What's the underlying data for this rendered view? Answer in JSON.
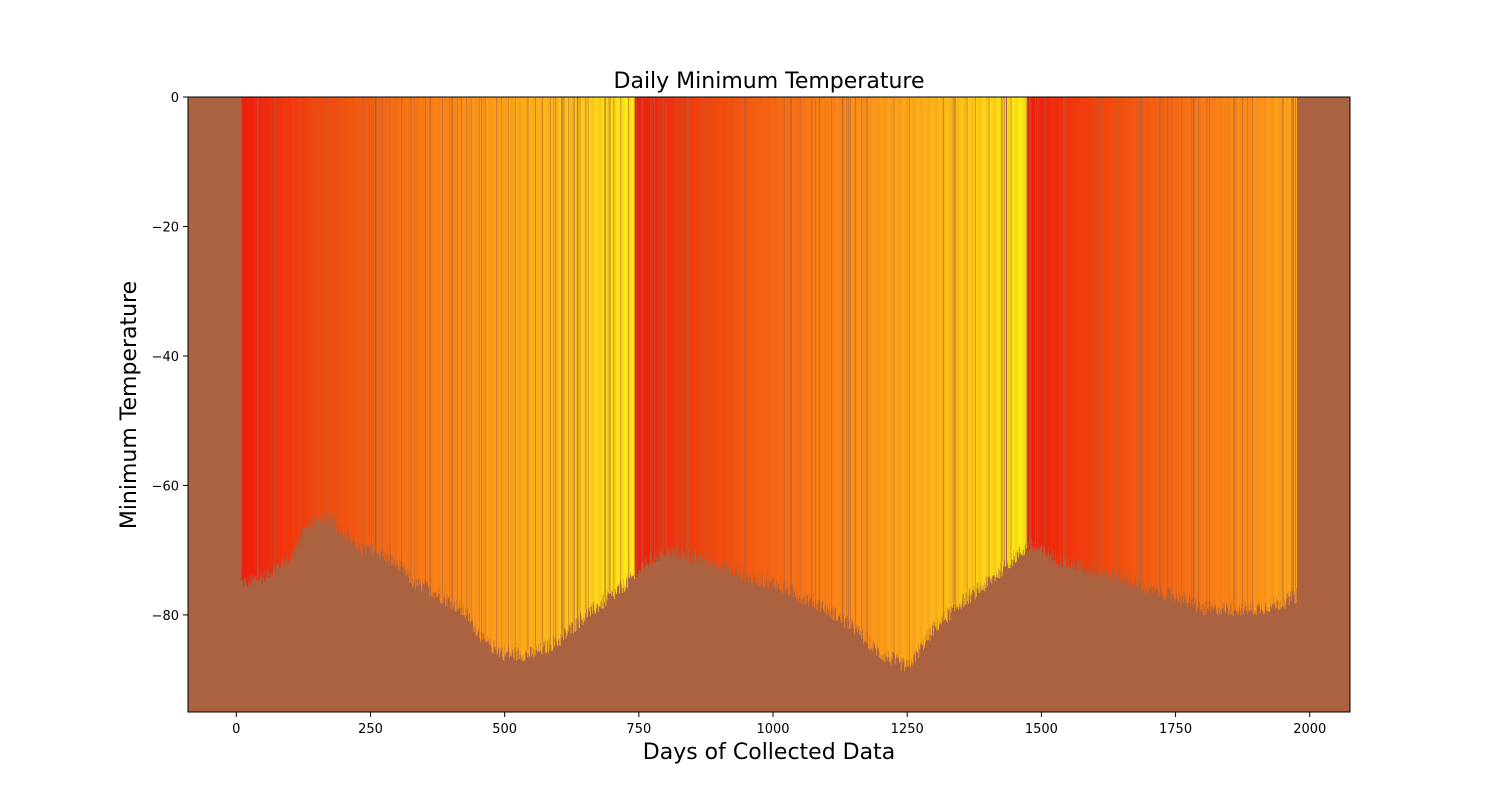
{
  "chart_data": {
    "type": "bar",
    "title": "Daily Minimum Temperature",
    "xlabel": "Days of Collected Data",
    "ylabel": "Minimum Temperature",
    "xlim": [
      -90,
      2075
    ],
    "ylim": [
      -95,
      0
    ],
    "x_ticks": [
      0,
      250,
      500,
      750,
      1000,
      1250,
      1500,
      1750,
      2000
    ],
    "x_tick_labels": [
      "0",
      "250",
      "500",
      "750",
      "1000",
      "1250",
      "1500",
      "1750",
      "2000"
    ],
    "y_ticks": [
      0,
      -20,
      -40,
      -60,
      -80
    ],
    "y_tick_labels": [
      "0",
      "−20",
      "−40",
      "−60",
      "−80"
    ],
    "grid": false,
    "legend": "none",
    "colors": {
      "plot_background": "#ab6240",
      "bar_gradient": [
        "#f21c0c",
        "#f5480c",
        "#f97014",
        "#ff9818",
        "#ffbc18",
        "#fff014"
      ]
    },
    "day_range": [
      10,
      1975
    ],
    "series": [
      {
        "keypoints_day_vs_min_temp": [
          [
            10,
            -75
          ],
          [
            50,
            -74
          ],
          [
            100,
            -71
          ],
          [
            130,
            -66
          ],
          [
            150,
            -65
          ],
          [
            175,
            -65
          ],
          [
            200,
            -67
          ],
          [
            230,
            -70
          ],
          [
            260,
            -70
          ],
          [
            300,
            -72
          ],
          [
            330,
            -75
          ],
          [
            360,
            -76
          ],
          [
            400,
            -78
          ],
          [
            430,
            -80
          ],
          [
            460,
            -84
          ],
          [
            500,
            -86
          ],
          [
            550,
            -86
          ],
          [
            600,
            -84
          ],
          [
            650,
            -80
          ],
          [
            700,
            -77
          ],
          [
            740,
            -74
          ],
          [
            760,
            -72
          ],
          [
            800,
            -70
          ],
          [
            850,
            -71
          ],
          [
            900,
            -72
          ],
          [
            950,
            -74
          ],
          [
            1000,
            -75
          ],
          [
            1050,
            -77
          ],
          [
            1100,
            -79
          ],
          [
            1150,
            -82
          ],
          [
            1200,
            -86
          ],
          [
            1250,
            -88
          ],
          [
            1300,
            -82
          ],
          [
            1350,
            -78
          ],
          [
            1400,
            -75
          ],
          [
            1450,
            -71
          ],
          [
            1480,
            -69
          ],
          [
            1500,
            -70
          ],
          [
            1550,
            -72
          ],
          [
            1600,
            -73
          ],
          [
            1650,
            -74
          ],
          [
            1700,
            -76
          ],
          [
            1750,
            -77
          ],
          [
            1800,
            -79
          ],
          [
            1850,
            -79
          ],
          [
            1900,
            -79
          ],
          [
            1950,
            -78
          ],
          [
            1975,
            -77
          ]
        ]
      }
    ]
  }
}
